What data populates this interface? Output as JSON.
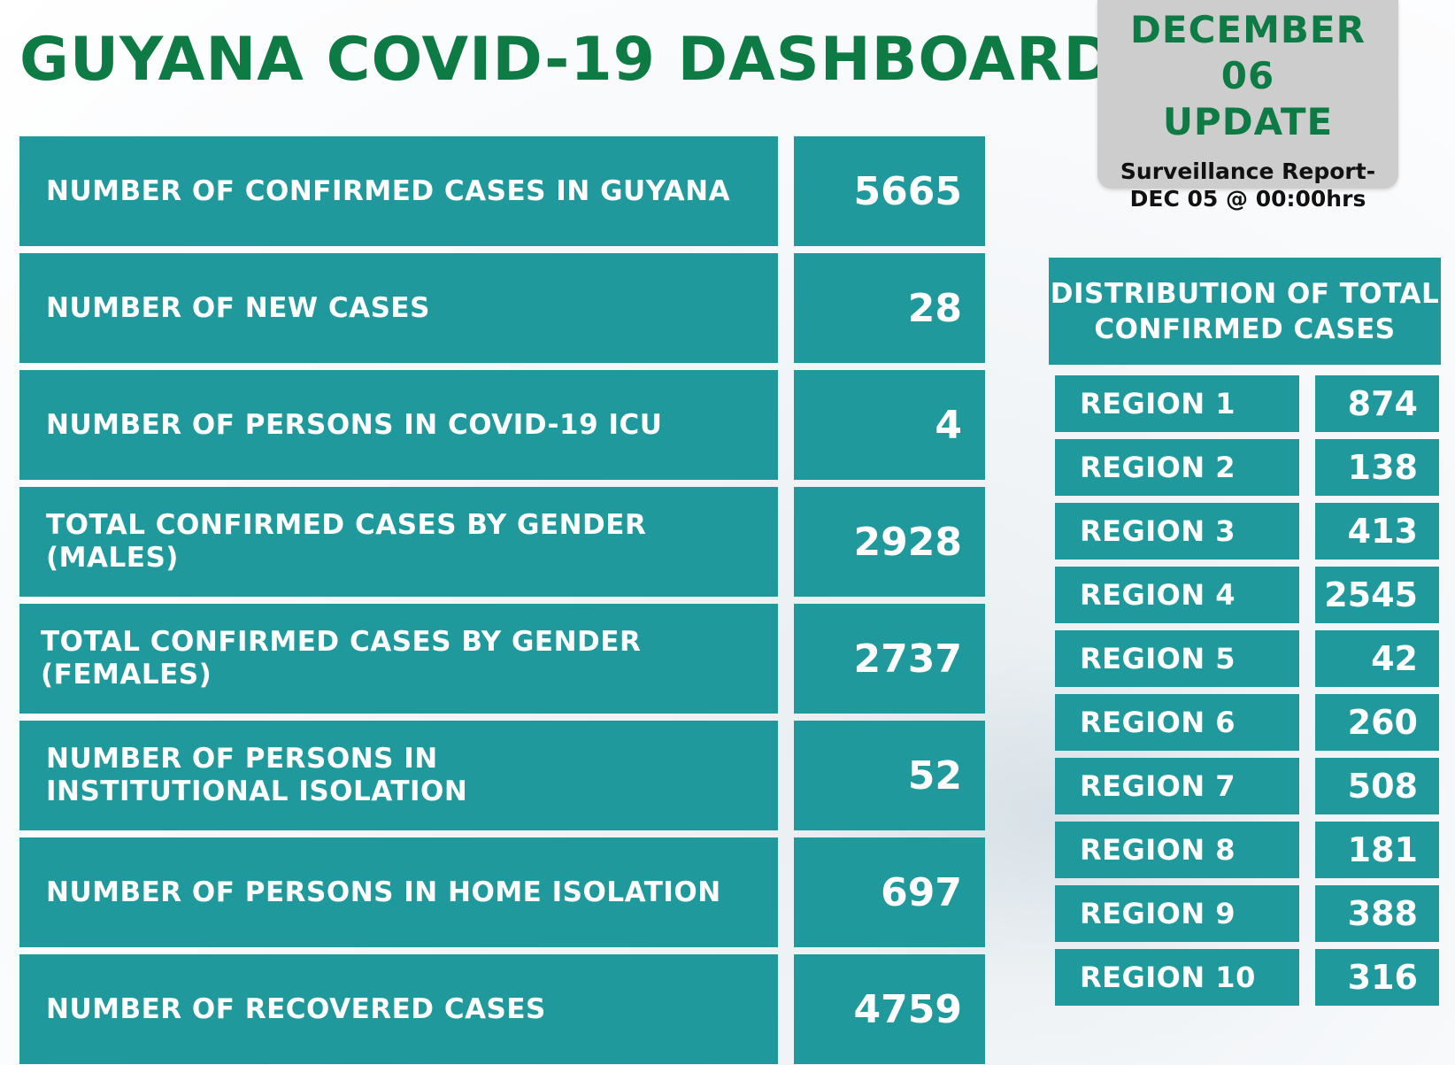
{
  "title": "GUYANA COVID-19 DASHBOARD",
  "update": {
    "line1": "DECEMBER 06",
    "line2": "UPDATE",
    "sub1": "Surveillance Report-",
    "sub2": "DEC 05 @ 00:00hrs"
  },
  "stats": [
    {
      "label": "NUMBER OF CONFIRMED CASES IN GUYANA",
      "value": "5665"
    },
    {
      "label": "NUMBER OF NEW CASES",
      "value": "28"
    },
    {
      "label": "NUMBER OF PERSONS  IN COVID-19 ICU",
      "value": "4"
    },
    {
      "label": "TOTAL CONFIRMED CASES BY GENDER (MALES)",
      "value": "2928"
    },
    {
      "label": "TOTAL CONFIRMED CASES BY GENDER (FEMALES)",
      "value": "2737"
    },
    {
      "label": "NUMBER OF PERSONS IN INSTITUTIONAL ISOLATION",
      "value": "52"
    },
    {
      "label": "NUMBER OF PERSONS IN HOME ISOLATION",
      "value": "697"
    },
    {
      "label": "NUMBER OF RECOVERED CASES",
      "value": "4759"
    }
  ],
  "distribution": {
    "heading_line1": "DISTRIBUTION OF TOTAL",
    "heading_line2": "CONFIRMED CASES",
    "regions": [
      {
        "label": "REGION 1",
        "value": "874"
      },
      {
        "label": "REGION 2",
        "value": "138"
      },
      {
        "label": "REGION 3",
        "value": "413"
      },
      {
        "label": "REGION 4",
        "value": "2545"
      },
      {
        "label": "REGION 5",
        "value": "42"
      },
      {
        "label": "REGION 6",
        "value": "260"
      },
      {
        "label": "REGION 7",
        "value": "508"
      },
      {
        "label": "REGION 8",
        "value": "181"
      },
      {
        "label": "REGION 9",
        "value": "388"
      },
      {
        "label": "REGION 10",
        "value": "316"
      }
    ]
  },
  "colors": {
    "teal": "#1f999b",
    "green": "#0e7b45",
    "gray": "#cdcdcd"
  }
}
